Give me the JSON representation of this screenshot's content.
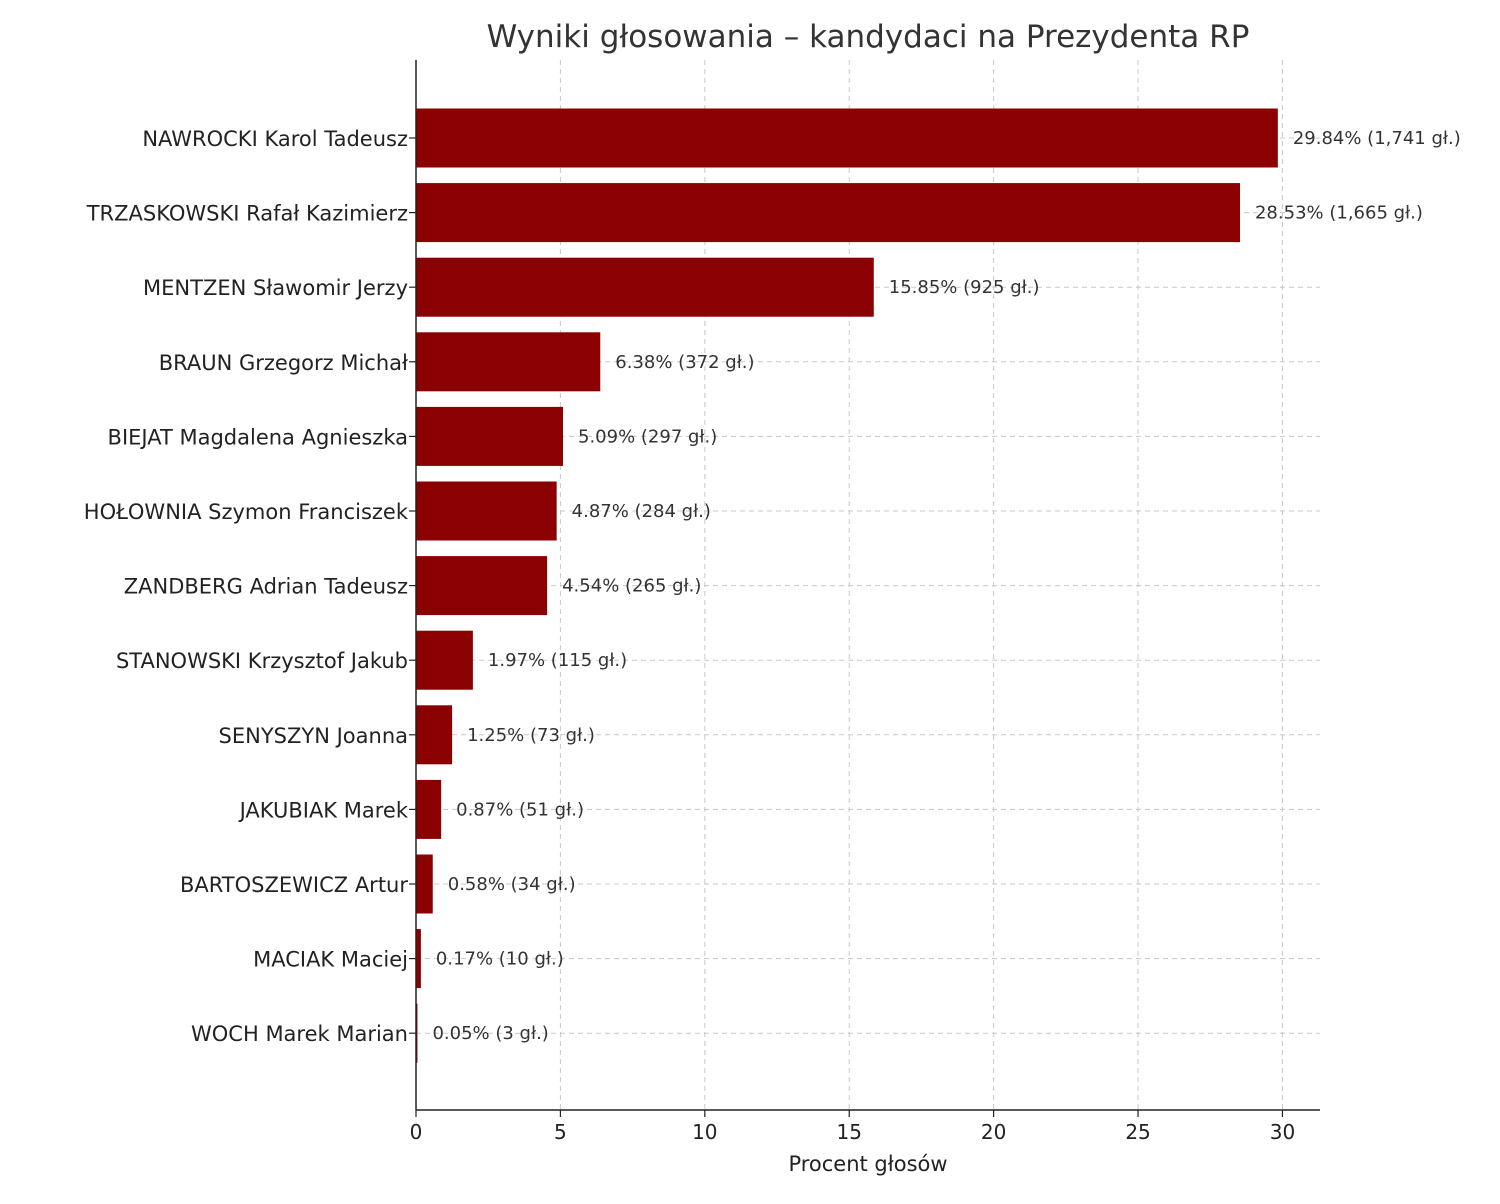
{
  "chart_data": {
    "type": "bar",
    "orientation": "horizontal",
    "title": "Wyniki głosowania – kandydaci na Prezydenta RP",
    "xlabel": "Procent głosów",
    "ylabel": "",
    "xlim": [
      0,
      31.3
    ],
    "x_ticks": [
      "0",
      "5",
      "10",
      "15",
      "20",
      "25",
      "30"
    ],
    "grid": true,
    "bar_color": "#8b0000",
    "categories": [
      "NAWROCKI Karol Tadeusz",
      "TRZASKOWSKI Rafał Kazimierz",
      "MENTZEN Sławomir Jerzy",
      "BRAUN Grzegorz Michał",
      "BIEJAT Magdalena Agnieszka",
      "HOŁOWNIA Szymon Franciszek",
      "ZANDBERG Adrian Tadeusz",
      "STANOWSKI Krzysztof Jakub",
      "SENYSZYN Joanna",
      "JAKUBIAK Marek",
      "BARTOSZEWICZ Artur",
      "MACIAK Maciej",
      "WOCH Marek Marian"
    ],
    "values": [
      29.84,
      28.53,
      15.85,
      6.38,
      5.09,
      4.87,
      4.54,
      1.97,
      1.25,
      0.87,
      0.58,
      0.17,
      0.05
    ],
    "votes": [
      1741,
      1665,
      925,
      372,
      297,
      284,
      265,
      115,
      73,
      51,
      34,
      10,
      3
    ],
    "data_labels": [
      "29.84% (1,741 gł.)",
      "28.53% (1,665 gł.)",
      "15.85% (925 gł.)",
      "6.38% (372 gł.)",
      "5.09% (297 gł.)",
      "4.87% (284 gł.)",
      "4.54% (265 gł.)",
      "1.97% (115 gł.)",
      "1.25% (73 gł.)",
      "0.87% (51 gł.)",
      "0.58% (34 gł.)",
      "0.17% (10 gł.)",
      "0.05% (3 gł.)"
    ]
  }
}
